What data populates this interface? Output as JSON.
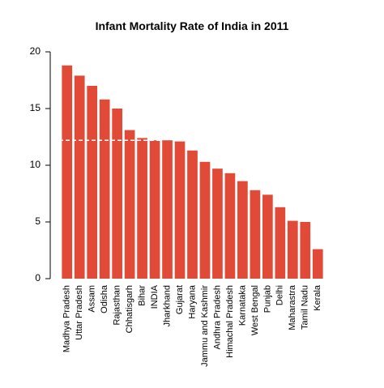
{
  "chart_data": {
    "type": "bar",
    "title": "Infant Mortality Rate of India in 2011",
    "xlabel": "",
    "ylabel": "",
    "ylim": [
      0,
      20
    ],
    "yticks": [
      0,
      5,
      10,
      15,
      20
    ],
    "categories": [
      "Madhya Pradesh",
      "Uttar Pradesh",
      "Assam",
      "Odisha",
      "Rajasthan",
      "Chhatisgarh",
      "Bihar",
      "INDIA",
      "Jharkhand",
      "Gujarat",
      "Haryana",
      "Jammu and Kashmir",
      "Andhra Pradesh",
      "Himachal Pradesh",
      "Karnataka",
      "West Bengal",
      "Punjab",
      "Delhi",
      "Maharastra",
      "Tamil Nadu",
      "Kerala"
    ],
    "values": [
      18.8,
      17.9,
      17.0,
      15.8,
      15.0,
      13.1,
      12.4,
      12.2,
      12.2,
      12.1,
      11.3,
      10.3,
      9.7,
      9.3,
      8.6,
      7.8,
      7.4,
      6.3,
      5.1,
      5.0,
      2.6
    ],
    "reference_line": {
      "value": 12.2,
      "style": "dashed"
    },
    "bar_color": "#e04a37",
    "grid": false
  }
}
